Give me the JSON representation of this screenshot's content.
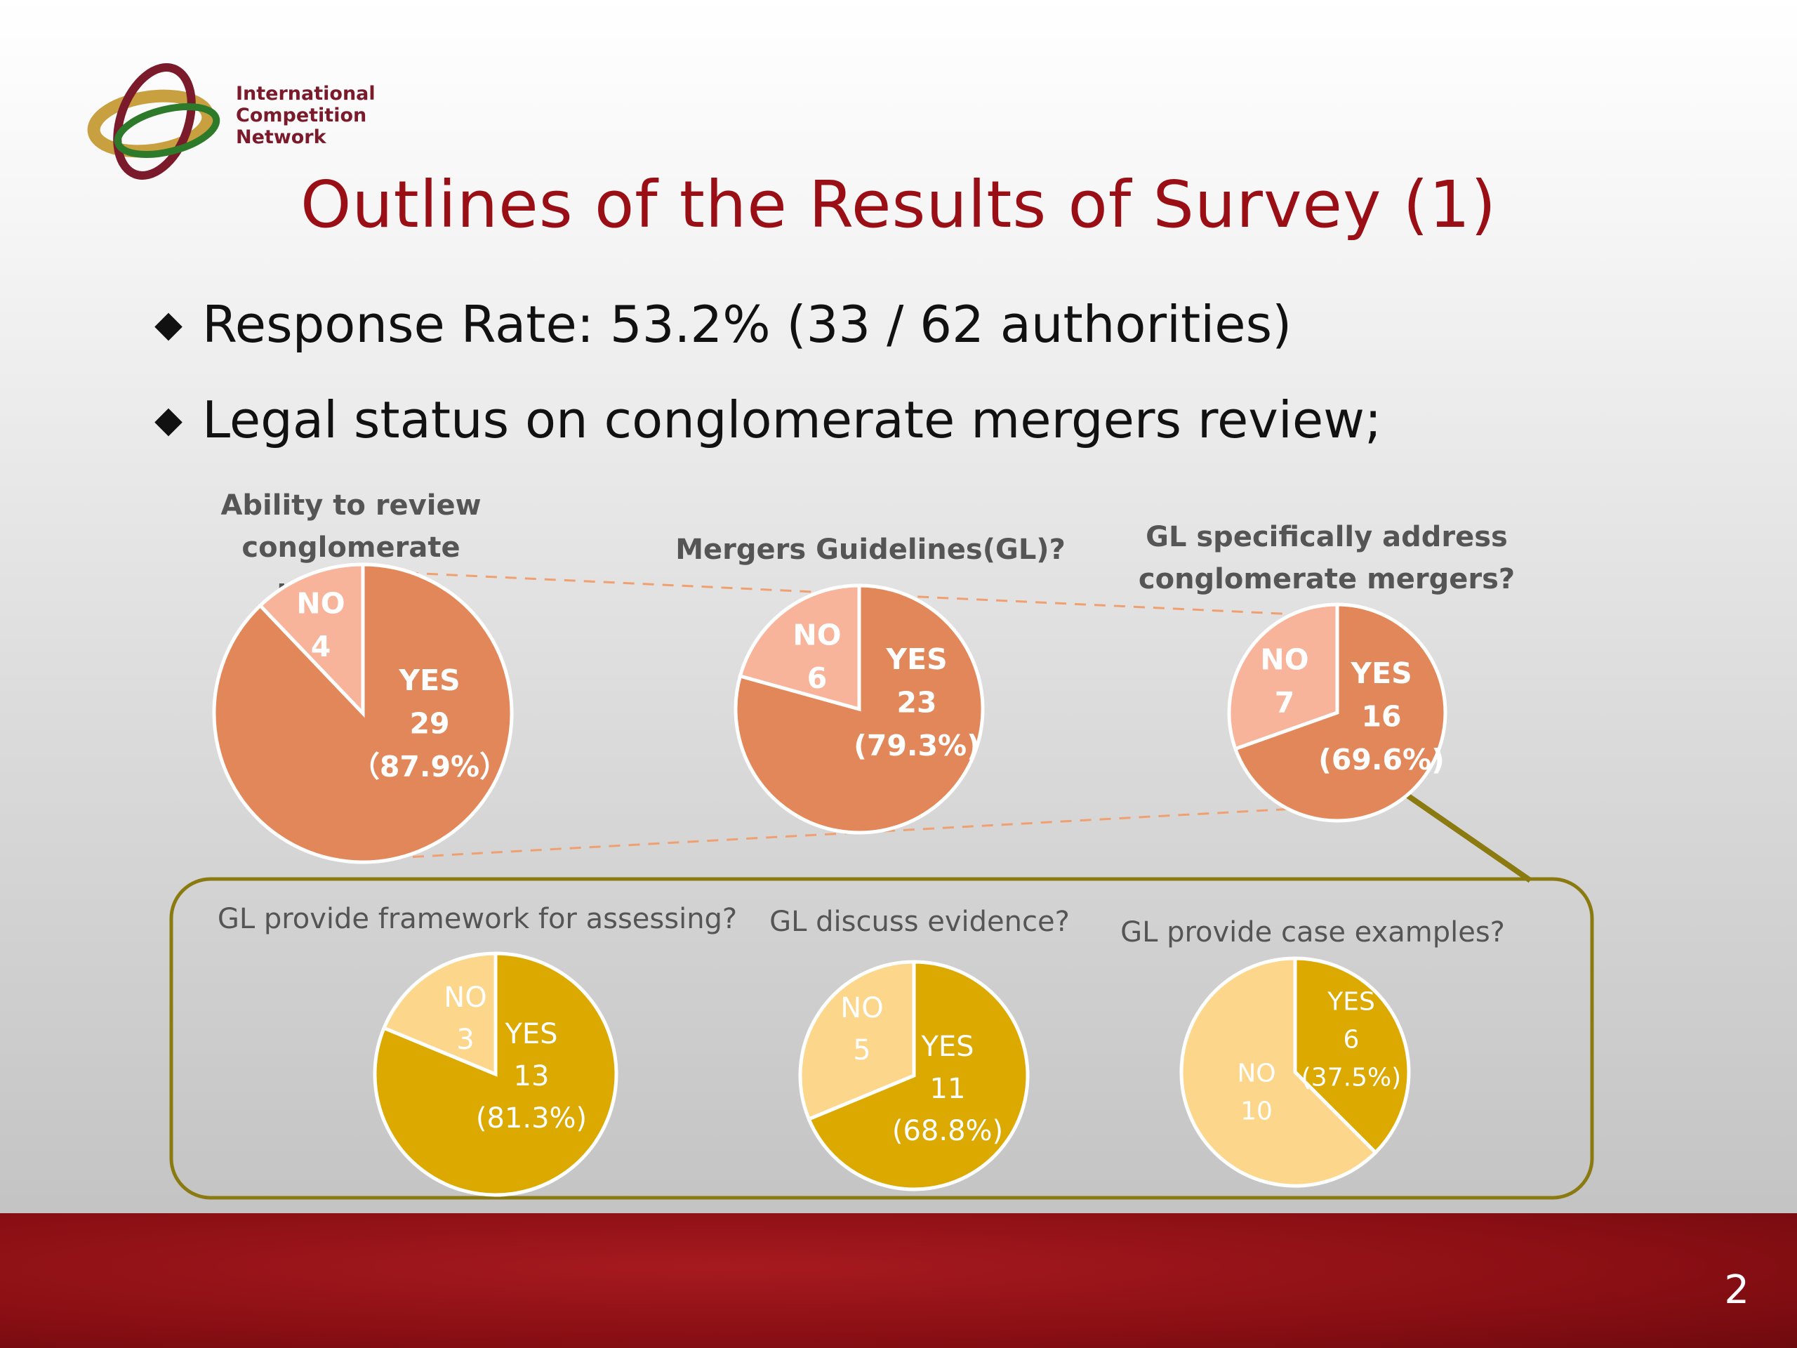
{
  "logo": {
    "text": "International\nCompetition\nNetwork"
  },
  "title": "Outlines of the Results of Survey (1)",
  "bullets": [
    "Response Rate: 53.2%  (33 / 62 authorities)",
    "Legal status on conglomerate mergers review;"
  ],
  "bullet_symbol": "◆",
  "questions": {
    "q1": "Ability to review\nconglomerate mergers?",
    "q2": "Mergers Guidelines(GL)?",
    "q3": "GL specifically address\nconglomerate mergers?",
    "q4": "GL provide framework for assessing?",
    "q5": "GL discuss evidence?",
    "q6": "GL provide case examples?"
  },
  "chart_data": [
    {
      "type": "pie",
      "title": "Ability to review conglomerate mergers?",
      "slices": [
        {
          "label": "YES",
          "value": 29,
          "text": [
            "YES",
            "29",
            "（87.9%）"
          ],
          "color": "#e2875a"
        },
        {
          "label": "NO",
          "value": 4,
          "text": [
            "NO",
            "4"
          ],
          "color": "#f7b49a"
        }
      ]
    },
    {
      "type": "pie",
      "title": "Mergers Guidelines(GL)?",
      "slices": [
        {
          "label": "YES",
          "value": 23,
          "text": [
            "YES",
            "23",
            "(79.3%)"
          ],
          "color": "#e2875a"
        },
        {
          "label": "NO",
          "value": 6,
          "text": [
            "NO",
            "6"
          ],
          "color": "#f7b49a"
        }
      ]
    },
    {
      "type": "pie",
      "title": "GL specifically address conglomerate mergers?",
      "slices": [
        {
          "label": "YES",
          "value": 16,
          "text": [
            "YES",
            "16",
            "(69.6%)"
          ],
          "color": "#e2875a"
        },
        {
          "label": "NO",
          "value": 7,
          "text": [
            "NO",
            "7"
          ],
          "color": "#f7b49a"
        }
      ]
    },
    {
      "type": "pie",
      "title": "GL provide framework for assessing?",
      "slices": [
        {
          "label": "YES",
          "value": 13,
          "text": [
            "YES",
            "13",
            "(81.3%)"
          ],
          "color": "#dba900"
        },
        {
          "label": "NO",
          "value": 3,
          "text": [
            "NO",
            "3"
          ],
          "color": "#fcd68a"
        }
      ]
    },
    {
      "type": "pie",
      "title": "GL discuss evidence?",
      "slices": [
        {
          "label": "YES",
          "value": 11,
          "text": [
            "YES",
            "11",
            "(68.8%)"
          ],
          "color": "#dba900"
        },
        {
          "label": "NO",
          "value": 5,
          "text": [
            "NO",
            "5"
          ],
          "color": "#fcd68a"
        }
      ]
    },
    {
      "type": "pie",
      "title": "GL provide case examples?",
      "slices": [
        {
          "label": "YES",
          "value": 6,
          "text": [
            "YES",
            "6",
            "(37.5%)"
          ],
          "color": "#dba900"
        },
        {
          "label": "NO",
          "value": 10,
          "text": [
            "NO",
            "10"
          ],
          "color": "#fcd68a"
        }
      ]
    }
  ],
  "colors": {
    "title": "#9a0f16",
    "connector": "#8a7a10",
    "dashed": "#f0a070",
    "footer": "#8a0f14"
  },
  "page_number": "2"
}
